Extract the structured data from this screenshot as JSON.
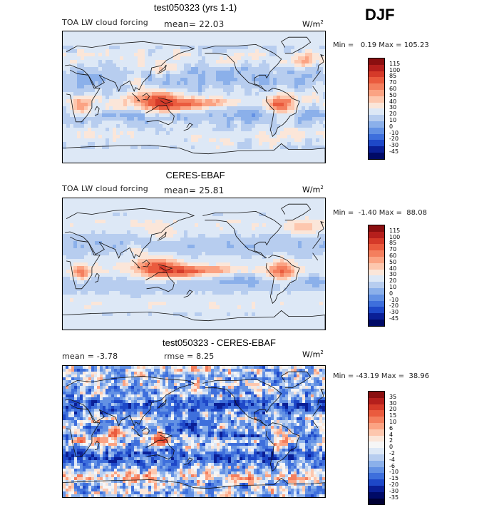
{
  "season": "DJF",
  "units_base": "W/m",
  "units_exp": "2",
  "panels": [
    {
      "title": "test050323 (yrs 1-1)",
      "subtitle": "TOA LW cloud forcing",
      "stat1": "mean=  22.03",
      "stat2": "",
      "minmax": "Min =   0.19 Max = 105.23"
    },
    {
      "title": "CERES-EBAF",
      "subtitle": "TOA LW cloud forcing",
      "stat1": "mean=  25.81",
      "stat2": "",
      "minmax": "Min =  -1.40 Max =  88.08"
    },
    {
      "title": "test050323 - CERES-EBAF",
      "subtitle": "",
      "stat1": "mean =  -3.78",
      "stat2": "rmse =   8.25",
      "minmax": "Min = -43.19 Max =  38.96"
    }
  ],
  "chart_data": [
    {
      "type": "heatmap",
      "title": "test050323 (yrs 1-1)",
      "subtitle": "TOA LW cloud forcing",
      "units": "W/m^2",
      "mean": 22.03,
      "min": 0.19,
      "max": 105.23,
      "colorbar_levels": [
        "115",
        "100",
        "85",
        "70",
        "60",
        "50",
        "40",
        "30",
        "20",
        "10",
        "0",
        "-10",
        "-20",
        "-30",
        "-45"
      ],
      "colorbar_colors": [
        "#8b0f10",
        "#b51f1c",
        "#d53a29",
        "#ea5b3e",
        "#f47f5e",
        "#fba383",
        "#fdc7ae",
        "#fbe6d9",
        "#dde8f6",
        "#b7cdef",
        "#8bb0ea",
        "#6391e4",
        "#3e6fdc",
        "#1e48c8",
        "#0a1f96",
        "#000a66"
      ]
    },
    {
      "type": "heatmap",
      "title": "CERES-EBAF",
      "subtitle": "TOA LW cloud forcing",
      "units": "W/m^2",
      "mean": 25.81,
      "min": -1.4,
      "max": 88.08,
      "colorbar_levels": [
        "115",
        "100",
        "85",
        "70",
        "60",
        "50",
        "40",
        "30",
        "20",
        "10",
        "0",
        "-10",
        "-20",
        "-30",
        "-45"
      ],
      "colorbar_colors": [
        "#8b0f10",
        "#b51f1c",
        "#d53a29",
        "#ea5b3e",
        "#f47f5e",
        "#fba383",
        "#fdc7ae",
        "#fbe6d9",
        "#dde8f6",
        "#b7cdef",
        "#8bb0ea",
        "#6391e4",
        "#3e6fdc",
        "#1e48c8",
        "#0a1f96",
        "#000a66"
      ]
    },
    {
      "type": "heatmap",
      "title": "test050323 - CERES-EBAF",
      "units": "W/m^2",
      "mean": -3.78,
      "rmse": 8.25,
      "min": -43.19,
      "max": 38.96,
      "colorbar_levels": [
        "35",
        "30",
        "20",
        "15",
        "10",
        "6",
        "4",
        "2",
        "0",
        "-2",
        "-4",
        "-6",
        "-10",
        "-15",
        "-20",
        "-30",
        "-35"
      ],
      "colorbar_colors": [
        "#8b0f10",
        "#b51f1c",
        "#d53a29",
        "#ea5b3e",
        "#f47f5e",
        "#fba383",
        "#fdc7ae",
        "#fbe6d9",
        "#f6f6f6",
        "#dde8f6",
        "#b7cdef",
        "#8bb0ea",
        "#6391e4",
        "#3e6fdc",
        "#1e48c8",
        "#0a1f96",
        "#000a66",
        "#000033"
      ]
    }
  ]
}
